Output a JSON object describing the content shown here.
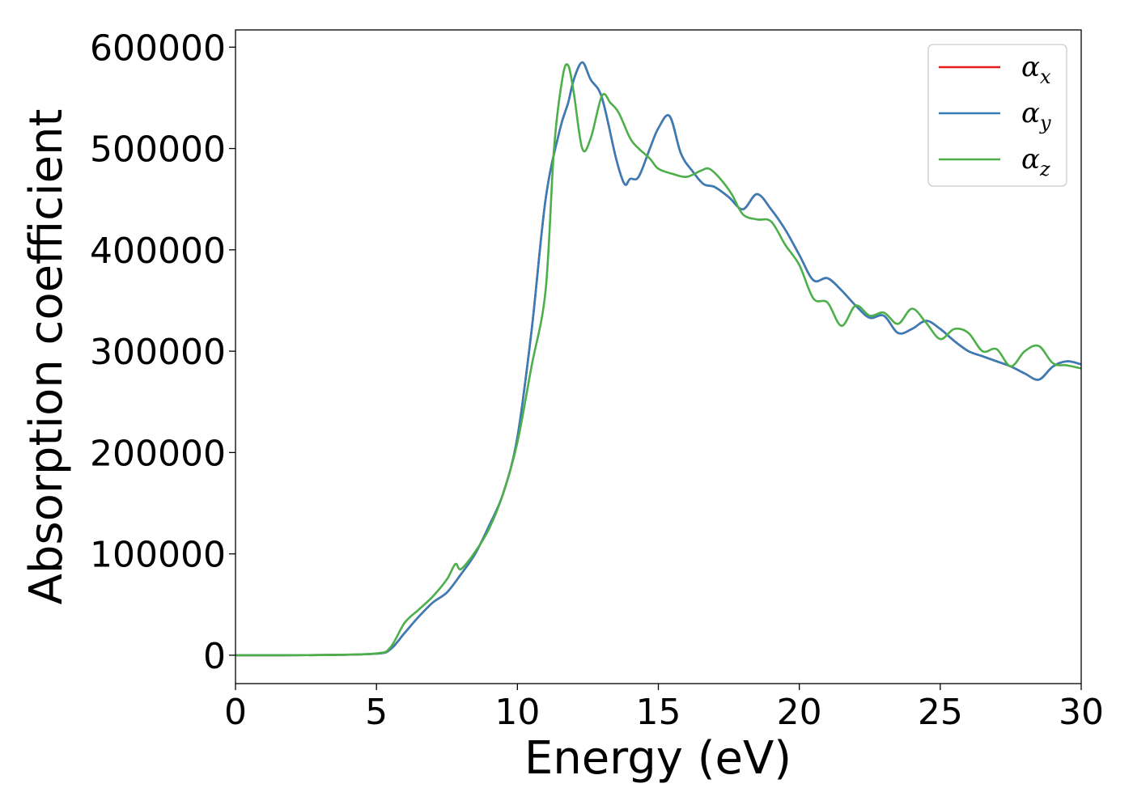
{
  "chart_data": {
    "type": "line",
    "title": "",
    "xlabel": "Energy (eV)",
    "ylabel": "Absorption coefficient",
    "xlim": [
      0,
      30
    ],
    "ylim": [
      -28000,
      617000
    ],
    "xticks": [
      0,
      5,
      10,
      15,
      20,
      25,
      30
    ],
    "yticks": [
      0,
      100000,
      200000,
      300000,
      400000,
      500000,
      600000
    ],
    "xtick_labels": [
      "0",
      "5",
      "10",
      "15",
      "20",
      "25",
      "30"
    ],
    "ytick_labels": [
      "0",
      "100000",
      "200000",
      "300000",
      "400000",
      "500000",
      "600000"
    ],
    "grid": false,
    "legend": "top-right",
    "series": [
      {
        "name": "α",
        "subscript": "x",
        "color": "#e41a1c",
        "x": [
          0,
          3,
          5,
          5.5,
          6,
          6.5,
          7,
          7.5,
          8,
          8.5,
          9,
          9.5,
          10,
          10.5,
          11,
          11.5,
          11.8,
          12.0,
          12.3,
          12.6,
          13.0,
          13.5,
          13.8,
          14.0,
          14.3,
          14.7,
          15.0,
          15.4,
          15.8,
          16.2,
          16.6,
          17.0,
          17.5,
          18.0,
          18.5,
          19.0,
          19.5,
          20.0,
          20.5,
          21.0,
          21.5,
          22.0,
          22.5,
          23.0,
          23.5,
          24.0,
          24.5,
          25.0,
          25.5,
          26.0,
          26.5,
          27.0,
          27.5,
          28.0,
          28.5,
          29.0,
          29.5,
          30
        ],
        "y": [
          0,
          200,
          1500,
          6000,
          22000,
          38000,
          52000,
          62000,
          80000,
          100000,
          128000,
          160000,
          215000,
          320000,
          450000,
          518000,
          545000,
          568000,
          585000,
          568000,
          550000,
          490000,
          465000,
          470000,
          472000,
          500000,
          520000,
          532000,
          495000,
          478000,
          465000,
          462000,
          452000,
          440000,
          455000,
          440000,
          420000,
          395000,
          370000,
          372000,
          360000,
          345000,
          333000,
          335000,
          318000,
          322000,
          330000,
          322000,
          310000,
          300000,
          295000,
          290000,
          285000,
          278000,
          272000,
          285000,
          290000,
          287000
        ]
      },
      {
        "name": "α",
        "subscript": "y",
        "color": "#377eb8",
        "x": [
          0,
          3,
          5,
          5.5,
          6,
          6.5,
          7,
          7.5,
          8,
          8.5,
          9,
          9.5,
          10,
          10.5,
          11,
          11.5,
          11.8,
          12.0,
          12.3,
          12.6,
          13.0,
          13.5,
          13.8,
          14.0,
          14.3,
          14.7,
          15.0,
          15.4,
          15.8,
          16.2,
          16.6,
          17.0,
          17.5,
          18.0,
          18.5,
          19.0,
          19.5,
          20.0,
          20.5,
          21.0,
          21.5,
          22.0,
          22.5,
          23.0,
          23.5,
          24.0,
          24.5,
          25.0,
          25.5,
          26.0,
          26.5,
          27.0,
          27.5,
          28.0,
          28.5,
          29.0,
          29.5,
          30
        ],
        "y": [
          0,
          200,
          1500,
          6000,
          22000,
          38000,
          52000,
          62000,
          80000,
          100000,
          128000,
          160000,
          215000,
          320000,
          450000,
          518000,
          545000,
          568000,
          585000,
          568000,
          550000,
          490000,
          465000,
          470000,
          472000,
          500000,
          520000,
          532000,
          495000,
          478000,
          465000,
          462000,
          452000,
          440000,
          455000,
          440000,
          420000,
          395000,
          370000,
          372000,
          360000,
          345000,
          333000,
          335000,
          318000,
          322000,
          330000,
          322000,
          310000,
          300000,
          295000,
          290000,
          285000,
          278000,
          272000,
          285000,
          290000,
          287000
        ]
      },
      {
        "name": "α",
        "subscript": "z",
        "color": "#4daf4a",
        "x": [
          0,
          3,
          5,
          5.5,
          6,
          6.5,
          7,
          7.5,
          7.8,
          8.0,
          8.5,
          9,
          9.5,
          10,
          10.5,
          11,
          11.3,
          11.6,
          11.8,
          12.0,
          12.3,
          12.6,
          13.0,
          13.3,
          13.6,
          14.0,
          14.3,
          14.7,
          15.0,
          15.5,
          16.0,
          16.5,
          16.8,
          17.2,
          17.6,
          18.0,
          18.5,
          19.0,
          19.5,
          20.0,
          20.5,
          21.0,
          21.5,
          22.0,
          22.5,
          23.0,
          23.5,
          24.0,
          24.5,
          25.0,
          25.5,
          26.0,
          26.5,
          27.0,
          27.5,
          28.0,
          28.5,
          29.0,
          29.5,
          30
        ],
        "y": [
          0,
          200,
          1800,
          8000,
          32000,
          45000,
          58000,
          75000,
          90000,
          85000,
          102000,
          125000,
          160000,
          210000,
          285000,
          360000,
          500000,
          570000,
          582000,
          555000,
          500000,
          510000,
          552000,
          545000,
          535000,
          510000,
          500000,
          490000,
          480000,
          475000,
          472000,
          478000,
          480000,
          470000,
          455000,
          435000,
          430000,
          428000,
          405000,
          385000,
          352000,
          348000,
          325000,
          345000,
          335000,
          338000,
          327000,
          342000,
          328000,
          312000,
          322000,
          318000,
          300000,
          302000,
          285000,
          300000,
          305000,
          288000,
          286000,
          283000
        ]
      }
    ]
  }
}
